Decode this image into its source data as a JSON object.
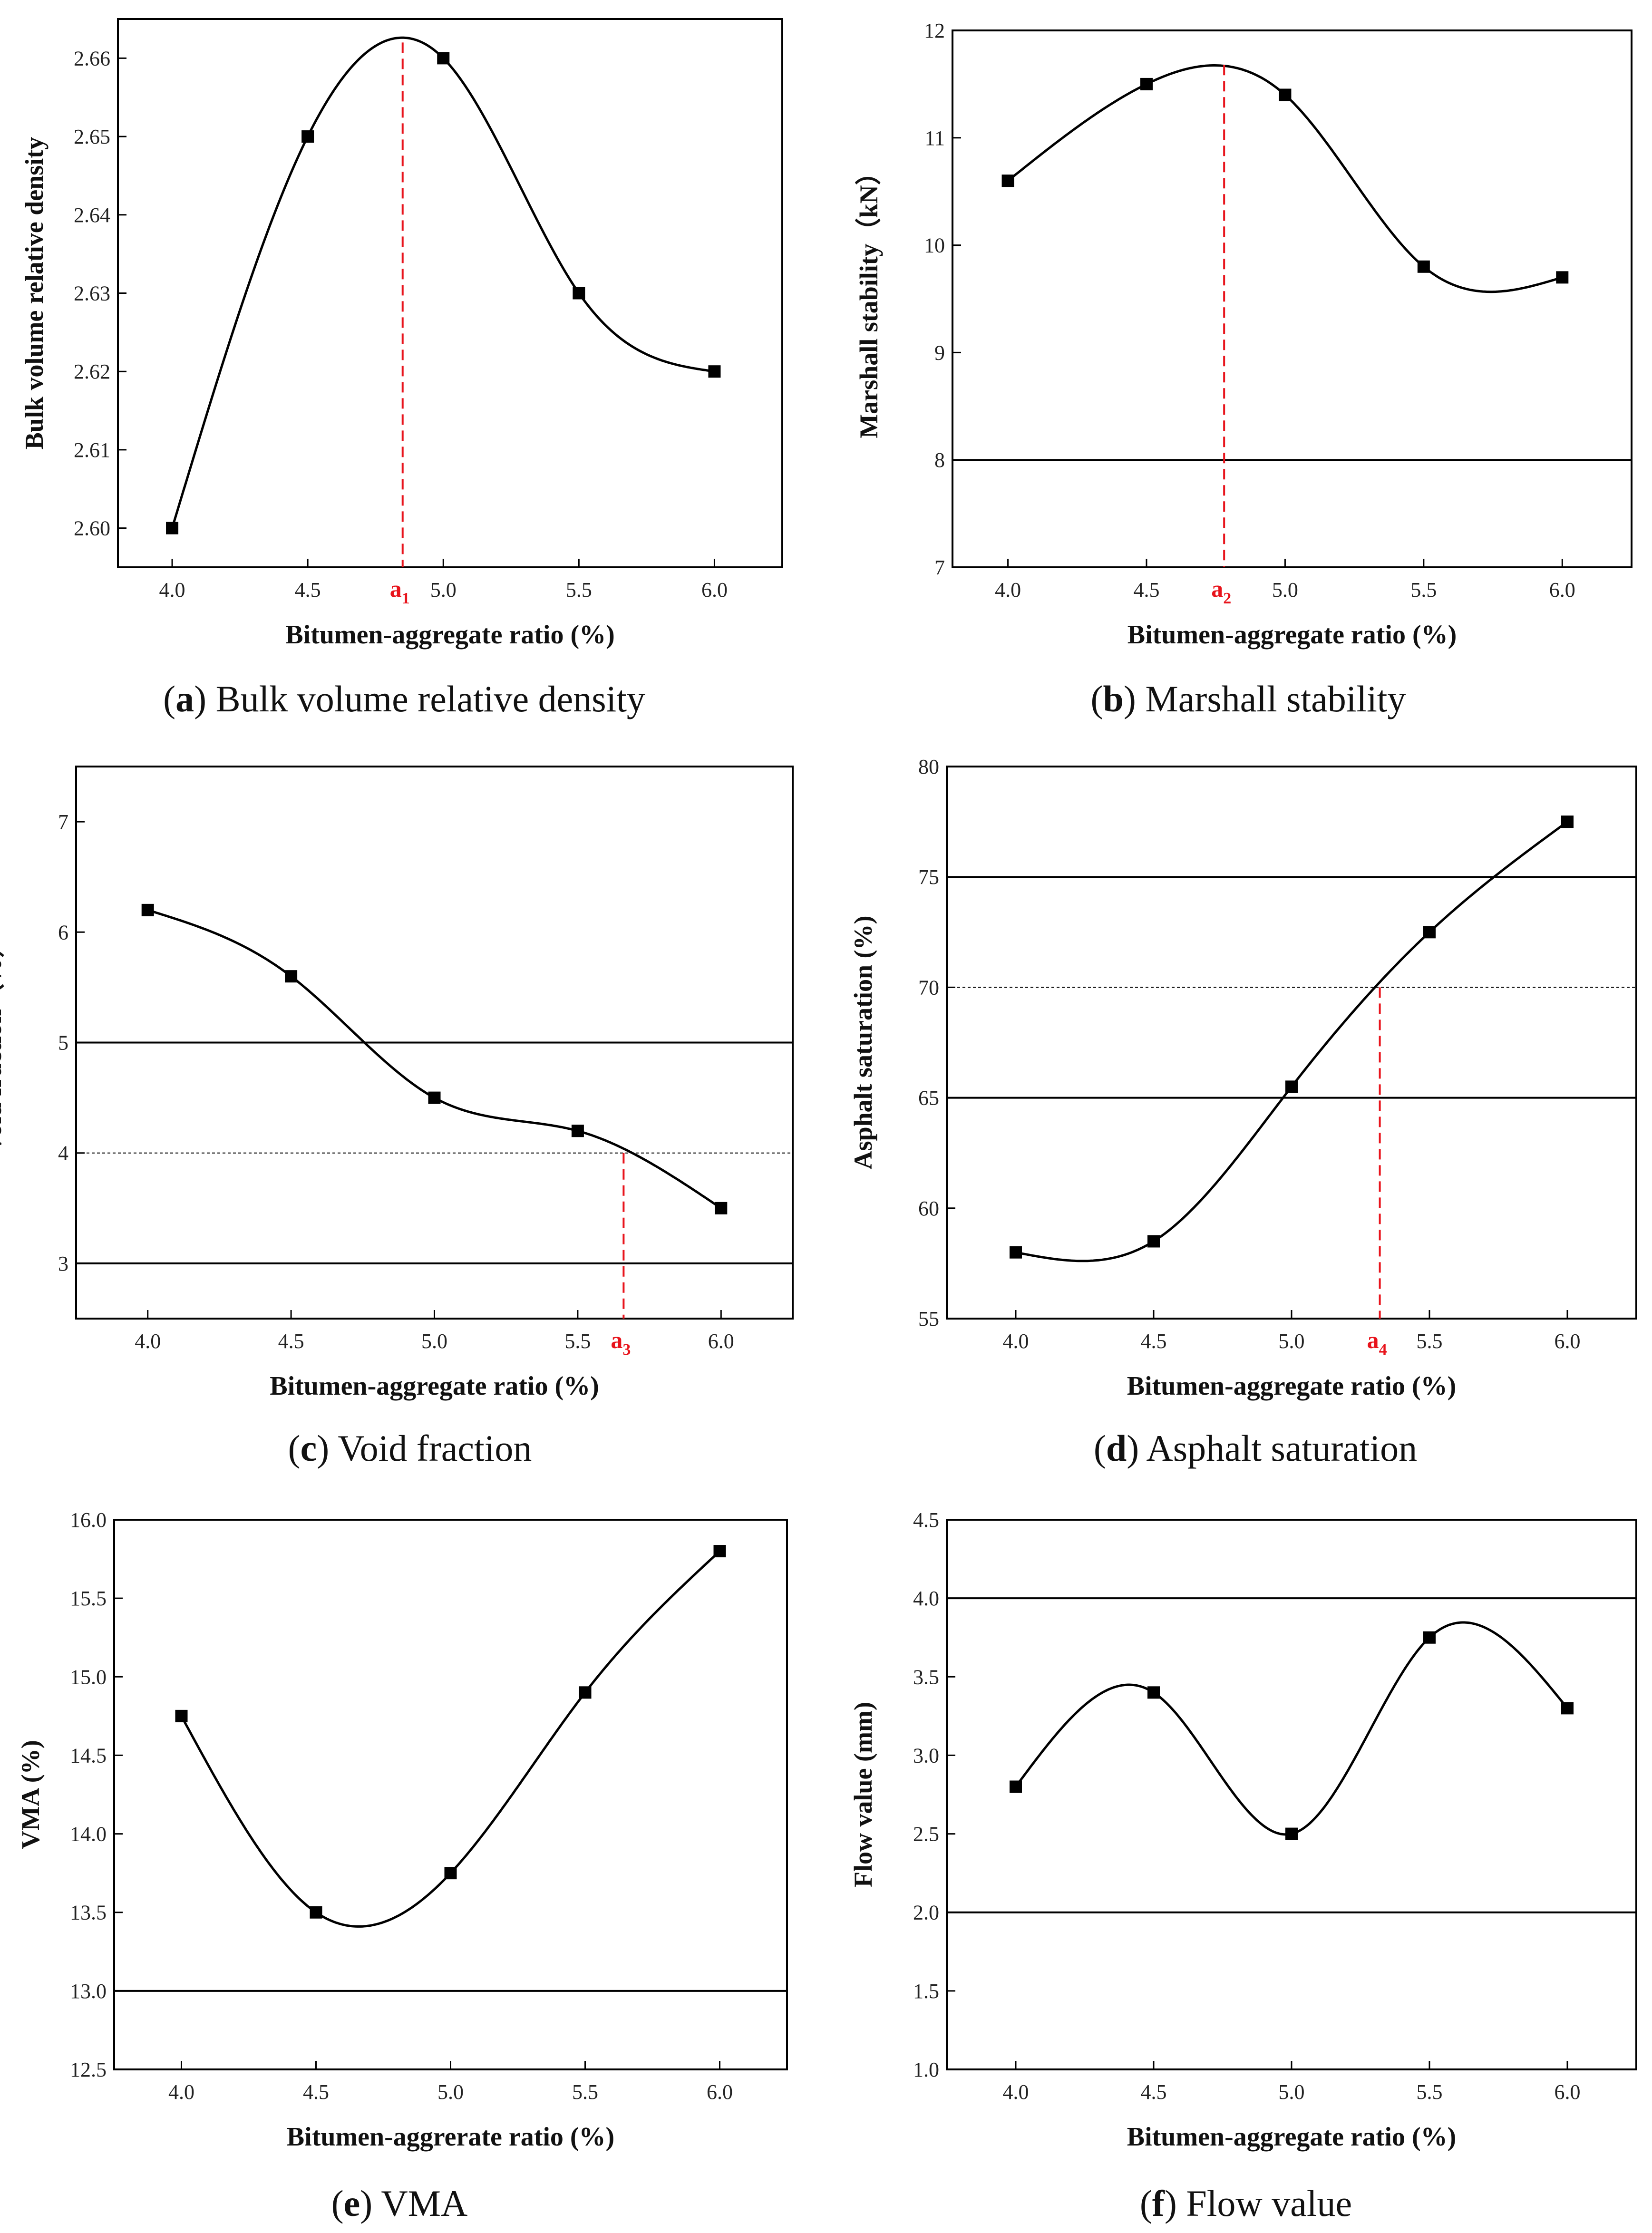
{
  "figure": {
    "colors": {
      "curve": "#000000",
      "marker": "#000000",
      "marker_line": "#e8141c",
      "hline": "#000000"
    }
  },
  "chart_data": [
    {
      "id": "a",
      "type": "line",
      "caption_letter": "a",
      "caption_text": "Bulk volume relative density",
      "xlabel": "Bitumen-aggregate ratio (%)",
      "ylabel": "Bulk volume relative density",
      "xlim": [
        3.8,
        6.25
      ],
      "ylim": [
        2.595,
        2.665
      ],
      "xticks": [
        "4.0",
        "4.5",
        "5.0",
        "5.5",
        "6.0"
      ],
      "yticks": [
        "2.60",
        "2.61",
        "2.62",
        "2.63",
        "2.64",
        "2.65",
        "2.66"
      ],
      "x": [
        4.0,
        4.5,
        5.0,
        5.5,
        6.0
      ],
      "y": [
        2.6,
        2.65,
        2.66,
        2.63,
        2.62
      ],
      "hlines": [],
      "marker": {
        "base": "a",
        "sub": "1",
        "x": 4.85,
        "y": 2.662
      }
    },
    {
      "id": "b",
      "type": "line",
      "caption_letter": "b",
      "caption_text": "Marshall stability",
      "xlabel": "Bitumen-aggregate ratio (%)",
      "ylabel": "Marshall stability（kN）",
      "xlim": [
        3.8,
        6.25
      ],
      "ylim": [
        7,
        12
      ],
      "xticks": [
        "4.0",
        "4.5",
        "5.0",
        "5.5",
        "6.0"
      ],
      "yticks": [
        "7",
        "8",
        "9",
        "10",
        "11",
        "12"
      ],
      "x": [
        4.0,
        4.5,
        5.0,
        5.5,
        6.0
      ],
      "y": [
        10.6,
        11.5,
        11.4,
        9.8,
        9.7
      ],
      "hlines": [
        {
          "y": 8,
          "style": "solid"
        }
      ],
      "marker": {
        "base": "a",
        "sub": "2",
        "x": 4.78,
        "y": 11.68
      }
    },
    {
      "id": "c",
      "type": "line",
      "caption_letter": "c",
      "caption_text": "Void fraction",
      "xlabel": "Bitumen-aggregate ratio (%)",
      "ylabel": "Void fraction（%）",
      "xlim": [
        3.75,
        6.25
      ],
      "ylim": [
        2.5,
        7.5
      ],
      "xticks": [
        "4.0",
        "4.5",
        "5.0",
        "5.5",
        "6.0"
      ],
      "yticks": [
        "3",
        "4",
        "5",
        "6",
        "7"
      ],
      "x": [
        4.0,
        4.5,
        5.0,
        5.5,
        6.0
      ],
      "y": [
        6.2,
        5.6,
        4.5,
        4.2,
        3.5
      ],
      "hlines": [
        {
          "y": 5,
          "style": "solid"
        },
        {
          "y": 4,
          "style": "dotted"
        },
        {
          "y": 3,
          "style": "solid"
        }
      ],
      "marker": {
        "base": "a",
        "sub": "3",
        "x": 5.66,
        "y": 4.0
      }
    },
    {
      "id": "d",
      "type": "line",
      "caption_letter": "d",
      "caption_text": "Asphalt saturation",
      "xlabel": "Bitumen-aggregate ratio (%)",
      "ylabel": "Asphalt saturation (%)",
      "xlim": [
        3.75,
        6.25
      ],
      "ylim": [
        55,
        80
      ],
      "xticks": [
        "4.0",
        "4.5",
        "5.0",
        "5.5",
        "6.0"
      ],
      "yticks": [
        "55",
        "60",
        "65",
        "70",
        "75",
        "80"
      ],
      "x": [
        4.0,
        4.5,
        5.0,
        5.5,
        6.0
      ],
      "y": [
        58,
        58.5,
        65.5,
        72.5,
        77.5
      ],
      "hlines": [
        {
          "y": 75,
          "style": "solid"
        },
        {
          "y": 70,
          "style": "dotted"
        },
        {
          "y": 65,
          "style": "solid"
        }
      ],
      "marker": {
        "base": "a",
        "sub": "4",
        "x": 5.32,
        "y": 70.0
      }
    },
    {
      "id": "e",
      "type": "line",
      "caption_letter": "e",
      "caption_text": "VMA",
      "xlabel": "Bitumen-aggrerate ratio (%)",
      "ylabel": "VMA (%)",
      "xlim": [
        3.75,
        6.25
      ],
      "ylim": [
        12.5,
        16.0
      ],
      "xticks": [
        "4.0",
        "4.5",
        "5.0",
        "5.5",
        "6.0"
      ],
      "yticks": [
        "12.5",
        "13.0",
        "13.5",
        "14.0",
        "14.5",
        "15.0",
        "15.5",
        "16.0"
      ],
      "x": [
        4.0,
        4.5,
        5.0,
        5.5,
        6.0
      ],
      "y": [
        14.75,
        13.5,
        13.75,
        14.9,
        15.8
      ],
      "hlines": [
        {
          "y": 13.0,
          "style": "solid"
        }
      ],
      "marker": null
    },
    {
      "id": "f",
      "type": "line",
      "caption_letter": "f",
      "caption_text": "Flow value",
      "xlabel": "Bitumen-aggregate ratio (%)",
      "ylabel": "Flow value (mm)",
      "xlim": [
        3.75,
        6.25
      ],
      "ylim": [
        1.0,
        4.5
      ],
      "xticks": [
        "4.0",
        "4.5",
        "5.0",
        "5.5",
        "6.0"
      ],
      "yticks": [
        "1.0",
        "1.5",
        "2.0",
        "2.5",
        "3.0",
        "3.5",
        "4.0",
        "4.5"
      ],
      "x": [
        4.0,
        4.5,
        5.0,
        5.5,
        6.0
      ],
      "y": [
        2.8,
        3.4,
        2.5,
        3.75,
        3.3
      ],
      "hlines": [
        {
          "y": 4.0,
          "style": "solid"
        },
        {
          "y": 2.0,
          "style": "solid"
        }
      ],
      "marker": null
    }
  ]
}
